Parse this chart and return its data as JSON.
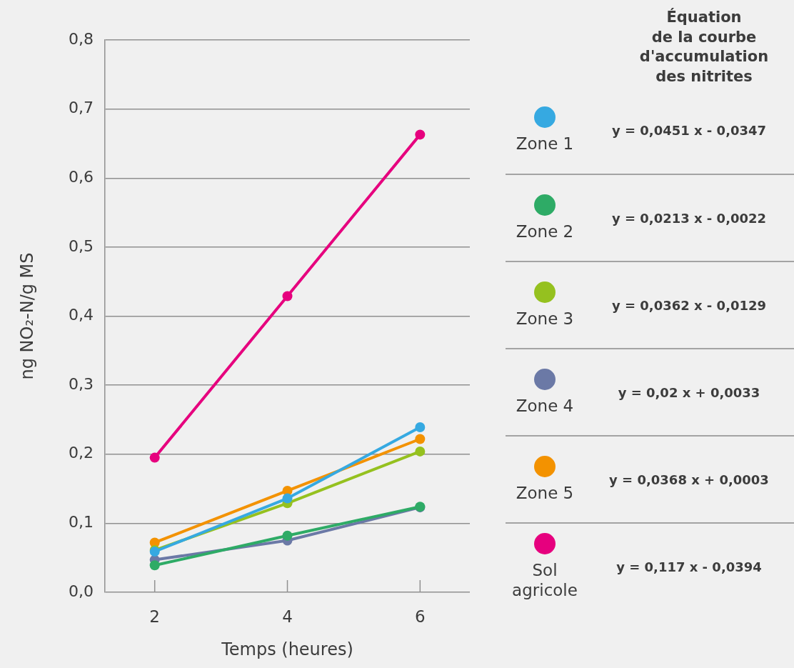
{
  "chart_data": {
    "type": "line",
    "xlabel": "Temps (heures)",
    "ylabel": "ng NO₂-N/g MS",
    "legend_title": "Équation\nde la courbe\nd'accumulation\ndes nitrites",
    "x": [
      2,
      4,
      6
    ],
    "xlim": [
      1.25,
      6.75
    ],
    "xticks": [
      2,
      4,
      6
    ],
    "ylim": [
      0,
      0.8
    ],
    "yticks": [
      {
        "value": 0,
        "label": "0,0"
      },
      {
        "value": 0.1,
        "label": "0,1"
      },
      {
        "value": 0.2,
        "label": "0,2"
      },
      {
        "value": 0.3,
        "label": "0,3"
      },
      {
        "value": 0.4,
        "label": "0,4"
      },
      {
        "value": 0.5,
        "label": "0,5"
      },
      {
        "value": 0.6,
        "label": "0,6"
      },
      {
        "value": 0.7,
        "label": "0,7"
      },
      {
        "value": 0.8,
        "label": "0,8"
      }
    ],
    "grid": "y",
    "legend": "right",
    "marker": "circle",
    "line_style": "solid",
    "series": [
      {
        "name": "Zone 1",
        "color": "#36a9e1",
        "values": [
          0.059,
          0.136,
          0.239
        ]
      },
      {
        "name": "Zone 2",
        "color": "#2eab66",
        "values": [
          0.039,
          0.082,
          0.124
        ]
      },
      {
        "name": "Zone 3",
        "color": "#95c11f",
        "values": [
          0.061,
          0.129,
          0.204
        ]
      },
      {
        "name": "Zone 4",
        "color": "#6b79a6",
        "values": [
          0.047,
          0.075,
          0.123
        ]
      },
      {
        "name": "Zone 5",
        "color": "#f39200",
        "values": [
          0.072,
          0.147,
          0.222
        ]
      },
      {
        "name": "Sol agricole",
        "color": "#e6007e",
        "values": [
          0.195,
          0.429,
          0.663
        ]
      }
    ],
    "annotations": [
      "y = 0,0451 x - 0,0347",
      "y = 0,0213 x - 0,0022",
      "y = 0,0362 x - 0,0129",
      "y = 0,02 x + 0,0033",
      "y = 0,0368 x + 0,0003",
      "y = 0,117 x - 0,0394"
    ]
  }
}
